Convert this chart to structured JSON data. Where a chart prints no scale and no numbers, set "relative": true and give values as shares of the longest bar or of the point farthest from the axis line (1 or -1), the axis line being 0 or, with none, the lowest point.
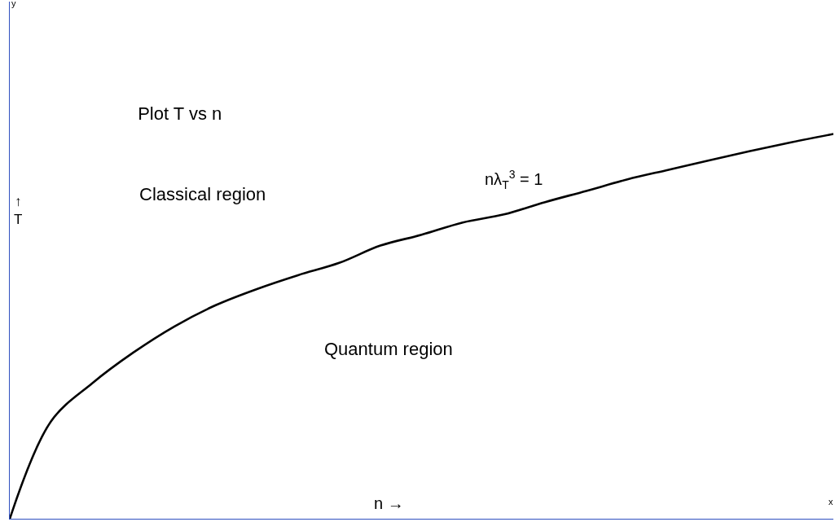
{
  "chart_data": {
    "type": "line",
    "relative": true,
    "title": "Plot T vs n",
    "xlabel": "n →",
    "ylabel": "↑\nT",
    "annotations": [
      "Classical region",
      "Quantum region",
      "nλ$_{T}$$^{3}$ = 1",
      "y",
      "x"
    ],
    "categories": [
      null,
      null,
      null,
      null,
      null,
      null,
      null,
      null,
      null,
      null,
      null,
      null,
      null,
      null,
      null,
      null,
      null,
      null,
      null,
      null,
      null
    ],
    "series": [
      {
        "color": "#000000",
        "values": [
          0,
          0.253,
          0.352,
          0.432,
          0.5,
          0.555,
          0.597,
          0.633,
          0.665,
          0.71,
          0.738,
          0.77,
          0.791,
          0.823,
          0.852,
          0.882,
          0.907,
          0.932,
          0.956,
          0.979,
          1
        ]
      }
    ],
    "legend": false,
    "marker": "none",
    "line_style": "solid"
  }
}
